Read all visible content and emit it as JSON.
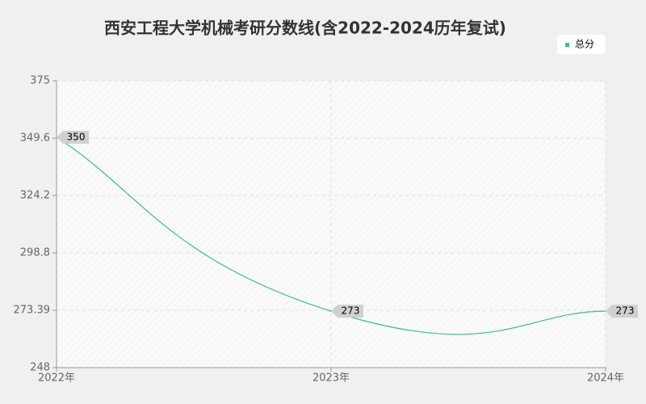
{
  "chart_data": {
    "type": "line",
    "title": "西安工程大学机械考研分数线(含2022-2024历年复试)",
    "categories": [
      "2022年",
      "2023年",
      "2024年"
    ],
    "series": [
      {
        "name": "总分",
        "color": "#3dbb8c",
        "values": [
          350,
          273,
          273
        ]
      }
    ],
    "ylim": [
      248,
      375
    ],
    "yticks": [
      248,
      273.39,
      298.8,
      324.2,
      349.6,
      375
    ],
    "grid": true,
    "legend": "top-right"
  }
}
